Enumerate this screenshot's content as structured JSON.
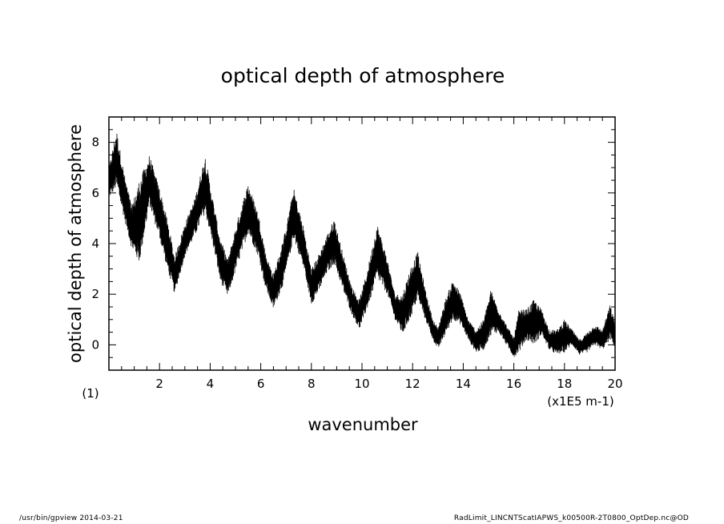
{
  "chart_data": {
    "type": "line",
    "title": "optical depth of atmosphere",
    "xlabel": "wavenumber",
    "ylabel": "optical depth of atmosphere",
    "x_unit": "(x1E5 m-1)",
    "y_unit": "(1)",
    "xlim": [
      0,
      20
    ],
    "ylim": [
      -1,
      9
    ],
    "x_ticks": [
      2,
      4,
      6,
      8,
      10,
      12,
      14,
      16,
      18,
      20
    ],
    "y_ticks": [
      0,
      2,
      4,
      6,
      8
    ],
    "grid": false,
    "series": [
      {
        "x": [
          0,
          0.3,
          0.6,
          0.9,
          1.2,
          1.6,
          2.0,
          2.3,
          2.6,
          3.0,
          3.4,
          3.8,
          4.1,
          4.4,
          4.7,
          5.1,
          5.5,
          5.9,
          6.2,
          6.5,
          6.9,
          7.3,
          7.7,
          8.0,
          8.3,
          8.6,
          8.9,
          9.3,
          9.6,
          9.9,
          10.2,
          10.6,
          11.0,
          11.3,
          11.6,
          11.9,
          12.2,
          12.5,
          12.8,
          13.0,
          13.3,
          13.6,
          13.9,
          14.2,
          14.5,
          14.8,
          15.1,
          15.4,
          15.7,
          16.0,
          16.2,
          16.5,
          16.8,
          17.1,
          17.4,
          17.7,
          18.0,
          18.3,
          18.6,
          18.9,
          19.2,
          19.5,
          19.8,
          20.0
        ],
        "y_low": [
          5.8,
          6.2,
          5.0,
          3.8,
          3.2,
          5.5,
          4.2,
          3.0,
          2.0,
          3.5,
          4.3,
          5.2,
          4.0,
          2.5,
          1.9,
          3.2,
          4.4,
          3.5,
          2.2,
          1.4,
          2.4,
          4.2,
          3.0,
          1.6,
          2.1,
          2.8,
          3.2,
          2.0,
          1.2,
          0.6,
          1.4,
          2.6,
          2.0,
          1.0,
          0.4,
          1.0,
          1.8,
          1.0,
          0.2,
          -0.2,
          0.4,
          1.0,
          0.8,
          0.2,
          -0.3,
          -0.2,
          0.4,
          0.5,
          0.0,
          -0.5,
          -0.3,
          0.2,
          0.0,
          0.4,
          -0.2,
          -0.4,
          -0.3,
          0.0,
          -0.4,
          -0.3,
          0.0,
          -0.2,
          0.2,
          -0.1
        ],
        "y_high": [
          7.0,
          8.5,
          6.8,
          5.5,
          6.5,
          7.5,
          6.2,
          5.0,
          3.5,
          4.8,
          5.8,
          7.5,
          5.8,
          4.2,
          3.4,
          5.0,
          6.4,
          5.2,
          3.6,
          2.8,
          4.2,
          6.2,
          4.6,
          3.0,
          3.6,
          4.3,
          5.0,
          3.4,
          2.3,
          1.8,
          2.9,
          4.8,
          3.4,
          2.0,
          2.0,
          3.0,
          3.7,
          2.2,
          1.0,
          0.7,
          1.8,
          2.6,
          2.0,
          1.0,
          0.6,
          1.0,
          2.2,
          1.4,
          0.8,
          0.3,
          1.4,
          1.4,
          1.8,
          1.4,
          0.6,
          0.6,
          1.0,
          0.6,
          0.2,
          0.5,
          0.8,
          0.6,
          1.6,
          0.9
        ]
      }
    ]
  },
  "footer": {
    "left": "/usr/bin/gpview   2014-03-21",
    "right": "RadLimit_LINCNTScatIAPWS_k00500R-2T0800_OptDep.nc@OD"
  }
}
